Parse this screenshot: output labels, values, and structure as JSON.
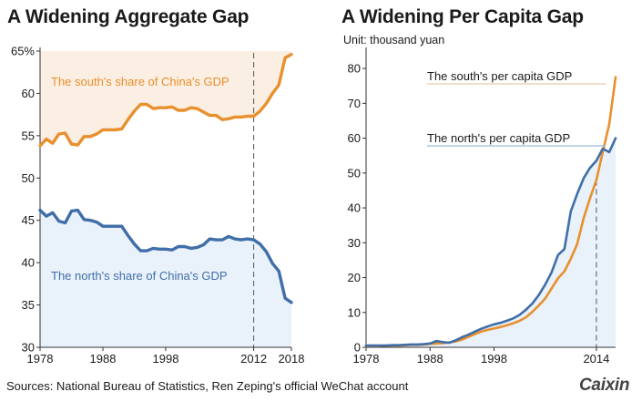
{
  "source_text": "Sources: National Bureau of Statistics, Ren Zeping's official WeChat account",
  "brand": "Caixin",
  "colors": {
    "south": "#e8902e",
    "north": "#3f6ea8",
    "south_fill": "#fbeee2",
    "north_fill": "#e9f1fa",
    "axis": "#333333",
    "dash": "#555555"
  },
  "chart_data": [
    {
      "type": "line",
      "title": "A Widening Aggregate Gap",
      "ylim": [
        30,
        65
      ],
      "xlim": [
        1978,
        2018
      ],
      "yticks": [
        30,
        35,
        40,
        45,
        50,
        55,
        60,
        65
      ],
      "ytick_labels": [
        "30",
        "35",
        "40",
        "45",
        "50",
        "55",
        "60",
        "65%"
      ],
      "xticks": [
        1978,
        1988,
        1998,
        2012,
        2018
      ],
      "xtick_labels": [
        "1978",
        "1988",
        "1998",
        "2012",
        "2018"
      ],
      "annotation_line_x": 2012,
      "grid": false,
      "series": [
        {
          "name": "The south's share of China's GDP",
          "x": [
            1978,
            1979,
            1980,
            1981,
            1982,
            1983,
            1984,
            1985,
            1986,
            1987,
            1988,
            1989,
            1990,
            1991,
            1992,
            1993,
            1994,
            1995,
            1996,
            1997,
            1998,
            1999,
            2000,
            2001,
            2002,
            2003,
            2004,
            2005,
            2006,
            2007,
            2008,
            2009,
            2010,
            2011,
            2012,
            2013,
            2014,
            2015,
            2016,
            2017,
            2018
          ],
          "values": [
            53.8,
            54.6,
            54.1,
            55.2,
            55.3,
            54.0,
            53.9,
            54.9,
            54.9,
            55.2,
            55.7,
            55.7,
            55.7,
            55.8,
            56.9,
            57.9,
            58.7,
            58.7,
            58.2,
            58.3,
            58.3,
            58.4,
            58.0,
            58.0,
            58.3,
            58.2,
            57.8,
            57.4,
            57.4,
            56.9,
            57.0,
            57.2,
            57.2,
            57.3,
            57.3,
            57.9,
            58.8,
            60.0,
            61.0,
            64.2,
            64.6
          ],
          "fill": "above"
        },
        {
          "name": "The north's share of China's GDP",
          "x": [
            1978,
            1979,
            1980,
            1981,
            1982,
            1983,
            1984,
            1985,
            1986,
            1987,
            1988,
            1989,
            1990,
            1991,
            1992,
            1993,
            1994,
            1995,
            1996,
            1997,
            1998,
            1999,
            2000,
            2001,
            2002,
            2003,
            2004,
            2005,
            2006,
            2007,
            2008,
            2009,
            2010,
            2011,
            2012,
            2013,
            2014,
            2015,
            2016,
            2017,
            2018
          ],
          "values": [
            46.2,
            45.5,
            45.9,
            44.9,
            44.7,
            46.1,
            46.2,
            45.1,
            45.0,
            44.8,
            44.3,
            44.3,
            44.3,
            44.3,
            43.2,
            42.2,
            41.4,
            41.4,
            41.7,
            41.6,
            41.6,
            41.5,
            41.9,
            41.9,
            41.7,
            41.8,
            42.1,
            42.8,
            42.7,
            42.7,
            43.1,
            42.8,
            42.7,
            42.8,
            42.7,
            42.2,
            41.3,
            39.9,
            39.0,
            35.8,
            35.3
          ],
          "fill": "below"
        }
      ]
    },
    {
      "type": "line",
      "title": "A Widening Per Capita Gap",
      "subtitle": "Unit: thousand yuan",
      "ylim": [
        0,
        85
      ],
      "xlim": [
        1978,
        2017
      ],
      "yticks": [
        0,
        10,
        20,
        30,
        40,
        50,
        60,
        70,
        80
      ],
      "ytick_labels": [
        "0",
        "10",
        "20",
        "30",
        "40",
        "50",
        "60",
        "70",
        "80"
      ],
      "xticks": [
        1978,
        1988,
        1998,
        2014
      ],
      "xtick_labels": [
        "1978",
        "1988",
        "1998",
        "2014"
      ],
      "annotation_line_x": 2014,
      "grid": false,
      "series": [
        {
          "name": "The south's per capita GDP",
          "x": [
            1978,
            1979,
            1980,
            1981,
            1982,
            1983,
            1984,
            1985,
            1986,
            1987,
            1988,
            1989,
            1990,
            1991,
            1992,
            1993,
            1994,
            1995,
            1996,
            1997,
            1998,
            1999,
            2000,
            2001,
            2002,
            2003,
            2004,
            2005,
            2006,
            2007,
            2008,
            2009,
            2010,
            2011,
            2012,
            2013,
            2014,
            2015,
            2016,
            2017
          ],
          "values": [
            0.4,
            0.4,
            0.4,
            0.5,
            0.5,
            0.5,
            0.6,
            0.7,
            0.7,
            0.8,
            1.0,
            1.1,
            1.2,
            1.4,
            1.7,
            2.2,
            3.0,
            3.8,
            4.5,
            5.0,
            5.4,
            5.8,
            6.3,
            6.9,
            7.6,
            8.6,
            10.2,
            12.0,
            14.0,
            16.9,
            19.8,
            21.8,
            25.4,
            29.6,
            37.0,
            42.8,
            48.0,
            56.0,
            64.0,
            77.5
          ]
        },
        {
          "name": "The north's per capita GDP",
          "x": [
            1978,
            1979,
            1980,
            1981,
            1982,
            1983,
            1984,
            1985,
            1986,
            1987,
            1988,
            1989,
            1990,
            1991,
            1992,
            1993,
            1994,
            1995,
            1996,
            1997,
            1998,
            1999,
            2000,
            2001,
            2002,
            2003,
            2004,
            2005,
            2006,
            2007,
            2008,
            2009,
            2010,
            2011,
            2012,
            2013,
            2014,
            2015,
            2016,
            2017
          ],
          "values": [
            0.5,
            0.5,
            0.5,
            0.5,
            0.6,
            0.6,
            0.7,
            0.8,
            0.8,
            0.9,
            1.1,
            1.8,
            1.5,
            1.3,
            2.0,
            2.9,
            3.6,
            4.5,
            5.3,
            6.0,
            6.6,
            7.0,
            7.6,
            8.3,
            9.3,
            10.8,
            12.6,
            15.0,
            18.0,
            21.5,
            26.5,
            28.2,
            39.0,
            44.0,
            48.5,
            51.5,
            53.5,
            57.0,
            56.0,
            60.0
          ],
          "fill": "below"
        }
      ]
    }
  ]
}
